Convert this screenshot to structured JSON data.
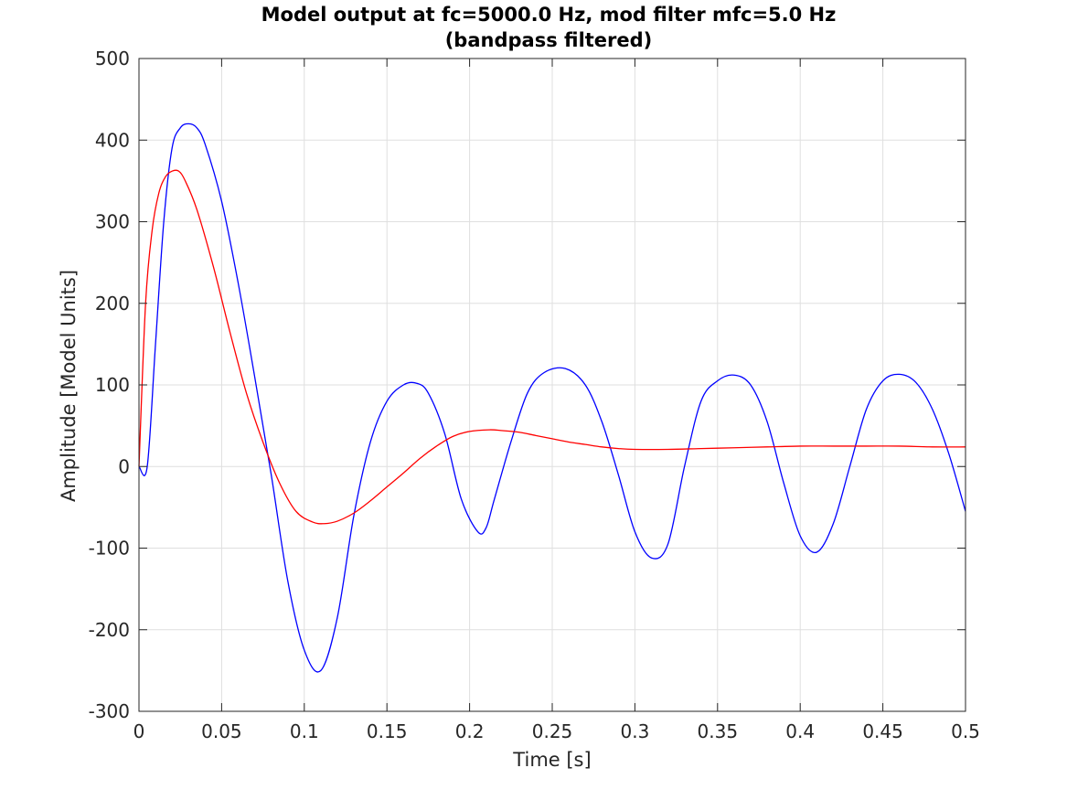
{
  "chart_data": {
    "type": "line",
    "title_lines": [
      "Model output at fc=5000.0 Hz, mod filter mfc=5.0 Hz",
      "(bandpass filtered)"
    ],
    "xlabel": "Time [s]",
    "ylabel": "Amplitude [Model Units]",
    "xlim": [
      0,
      0.5
    ],
    "ylim": [
      -300,
      500
    ],
    "xticks": [
      0,
      0.05,
      0.1,
      0.15,
      0.2,
      0.25,
      0.3,
      0.35,
      0.4,
      0.45,
      0.5
    ],
    "yticks": [
      -300,
      -200,
      -100,
      0,
      100,
      200,
      300,
      400,
      500
    ],
    "xtick_labels": [
      "0",
      "0.05",
      "0.1",
      "0.15",
      "0.2",
      "0.25",
      "0.3",
      "0.35",
      "0.4",
      "0.45",
      "0.5"
    ],
    "ytick_labels": [
      "-300",
      "-200",
      "-100",
      "0",
      "100",
      "200",
      "300",
      "400",
      "500"
    ],
    "grid": true,
    "legend": "none",
    "series": [
      {
        "color": "#0000ff",
        "x": [
          0,
          0.005,
          0.01,
          0.015,
          0.02,
          0.025,
          0.03,
          0.035,
          0.04,
          0.05,
          0.06,
          0.07,
          0.08,
          0.09,
          0.1,
          0.11,
          0.12,
          0.13,
          0.14,
          0.15,
          0.16,
          0.168,
          0.175,
          0.185,
          0.195,
          0.205,
          0.21,
          0.215,
          0.225,
          0.235,
          0.245,
          0.258,
          0.27,
          0.28,
          0.29,
          0.3,
          0.31,
          0.32,
          0.33,
          0.34,
          0.35,
          0.36,
          0.37,
          0.38,
          0.39,
          0.4,
          0.41,
          0.42,
          0.43,
          0.44,
          0.45,
          0.46,
          0.47,
          0.48,
          0.49,
          0.5
        ],
        "y": [
          0,
          0,
          150,
          300,
          390,
          415,
          420,
          415,
          395,
          325,
          225,
          110,
          -10,
          -140,
          -225,
          -250,
          -185,
          -60,
          30,
          80,
          100,
          102,
          90,
          40,
          -40,
          -80,
          -75,
          -40,
          30,
          90,
          115,
          120,
          100,
          55,
          -10,
          -80,
          -112,
          -95,
          0,
          80,
          105,
          112,
          100,
          55,
          -20,
          -85,
          -105,
          -70,
          0,
          70,
          105,
          113,
          103,
          70,
          15,
          -55
        ]
      },
      {
        "color": "#ff0000",
        "x": [
          0,
          0.004,
          0.008,
          0.012,
          0.016,
          0.02,
          0.024,
          0.028,
          0.035,
          0.045,
          0.055,
          0.065,
          0.075,
          0.085,
          0.095,
          0.105,
          0.112,
          0.12,
          0.13,
          0.14,
          0.15,
          0.16,
          0.17,
          0.18,
          0.19,
          0.2,
          0.212,
          0.22,
          0.23,
          0.24,
          0.25,
          0.26,
          0.27,
          0.28,
          0.29,
          0.3,
          0.32,
          0.34,
          0.36,
          0.38,
          0.4,
          0.42,
          0.44,
          0.46,
          0.48,
          0.5
        ],
        "y": [
          0,
          200,
          290,
          335,
          355,
          362,
          362,
          350,
          315,
          245,
          165,
          90,
          30,
          -20,
          -55,
          -68,
          -70,
          -67,
          -57,
          -42,
          -25,
          -8,
          10,
          25,
          37,
          43,
          45,
          44,
          42,
          38,
          34,
          30,
          27,
          24,
          22,
          21,
          21,
          22,
          23,
          24,
          25,
          25,
          25,
          25,
          24,
          24
        ]
      }
    ]
  }
}
